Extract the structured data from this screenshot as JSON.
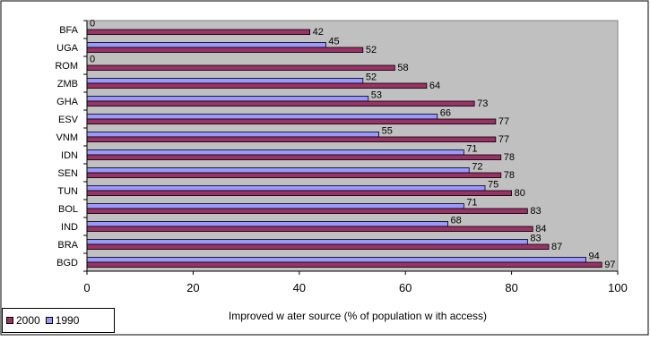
{
  "chart_data": {
    "type": "bar",
    "orientation": "horizontal",
    "categories": [
      "BFA",
      "UGA",
      "ROM",
      "ZMB",
      "GHA",
      "ESV",
      "VNM",
      "IDN",
      "SEN",
      "TUN",
      "BOL",
      "IND",
      "BRA",
      "BGD"
    ],
    "series": [
      {
        "name": "1990",
        "color": "#9999ff",
        "values": [
          0,
          45,
          0,
          52,
          53,
          66,
          55,
          71,
          72,
          75,
          71,
          68,
          83,
          94
        ]
      },
      {
        "name": "2000",
        "color": "#993366",
        "values": [
          42,
          52,
          58,
          64,
          73,
          77,
          77,
          78,
          78,
          80,
          83,
          84,
          87,
          97
        ]
      }
    ],
    "xlabel": "Improved w ater source (% of population w ith access)",
    "xlim": [
      0,
      100
    ],
    "xticks": [
      0,
      20,
      40,
      60,
      80,
      100
    ],
    "grid": false,
    "plot_background": "#c0c0c0",
    "legend_position": "bottom-left",
    "legend_order": [
      "2000",
      "1990"
    ],
    "data_labels": true
  }
}
